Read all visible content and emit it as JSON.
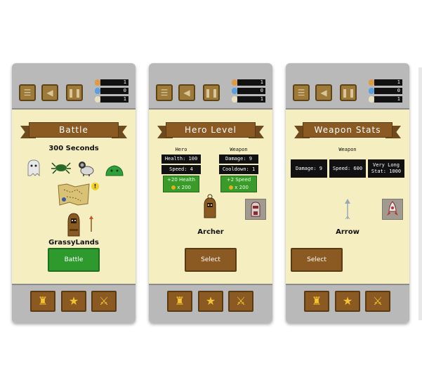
{
  "topbar": {
    "buttons": [
      {
        "icon": "list-icon",
        "glyph": "☰"
      },
      {
        "icon": "speaker-icon",
        "glyph": "◀"
      },
      {
        "icon": "pause-icon",
        "glyph": "❚❚"
      }
    ],
    "resources": [
      {
        "icon": "shield-icon",
        "value": "1",
        "color": "#e09a40"
      },
      {
        "icon": "potion-icon",
        "value": "0",
        "color": "#5aa0e0"
      },
      {
        "icon": "scroll-icon",
        "value": "1",
        "color": "#e8e0c0"
      }
    ]
  },
  "bottombar": {
    "buttons": [
      {
        "icon": "hero-icon",
        "glyph": "♜"
      },
      {
        "icon": "star-icon",
        "glyph": "★"
      },
      {
        "icon": "axe-icon",
        "glyph": "⚔"
      }
    ]
  },
  "screens": {
    "battle": {
      "title": "Battle",
      "timer": "300 Seconds",
      "enemies": [
        "ghost-icon",
        "spider-icon",
        "ram-icon",
        "slime-icon"
      ],
      "map_badge": "!",
      "level_name": "GrassyLands",
      "button": "Battle"
    },
    "hero": {
      "title": "Hero Level",
      "hero_heading": "Hero",
      "weapon_heading": "Weapon",
      "health": "Health: 100",
      "speed": "Speed: 4",
      "damage": "Damage: 9",
      "cooldown": "Cooldown: 1",
      "hero_upgrade": "+20 Health",
      "hero_cost": "x 200",
      "weapon_upgrade": "+2 Speed",
      "weapon_cost": "x 200",
      "name": "Archer",
      "button": "Select"
    },
    "weapon": {
      "title": "Weapon Stats",
      "heading": "Weapon",
      "damage": "Damage: 9",
      "speed": "Speed: 600",
      "special_line1": "Very Long",
      "special_line2": "Stat: 1000",
      "name": "Arrow",
      "button": "Select"
    }
  }
}
